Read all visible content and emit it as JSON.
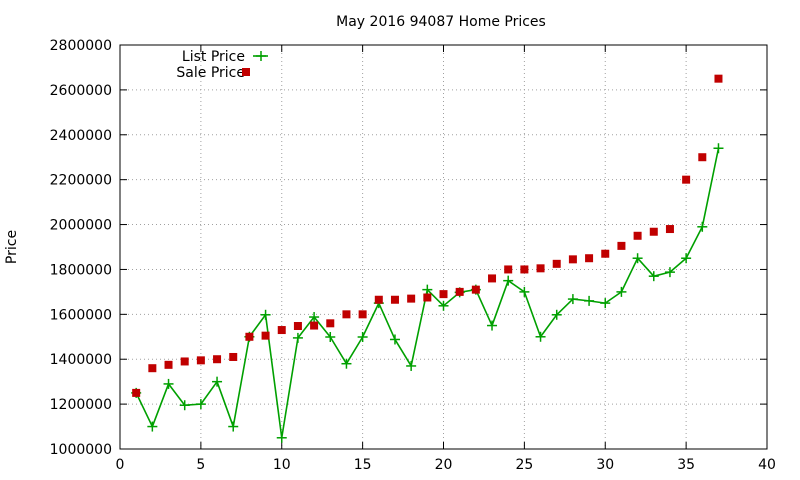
{
  "chart_data": {
    "type": "line",
    "title": "May 2016 94087 Home Prices",
    "xlabel": "",
    "ylabel": "Price",
    "xlim": [
      0,
      40
    ],
    "ylim": [
      1000000,
      2800000
    ],
    "xticks": [
      0,
      5,
      10,
      15,
      20,
      25,
      30,
      35,
      40
    ],
    "yticks": [
      1000000,
      1200000,
      1400000,
      1600000,
      1800000,
      2000000,
      2200000,
      2400000,
      2600000,
      2800000
    ],
    "grid": true,
    "legend_position": "top-left",
    "series": [
      {
        "name": "List Price",
        "style": "line+cross",
        "color": "#00a000",
        "x": [
          1,
          2,
          3,
          4,
          5,
          6,
          7,
          8,
          9,
          10,
          11,
          12,
          13,
          14,
          15,
          16,
          17,
          18,
          19,
          20,
          21,
          22,
          23,
          24,
          25,
          26,
          27,
          28,
          29,
          30,
          31,
          32,
          33,
          34,
          35,
          36,
          37
        ],
        "values": [
          1250000,
          1100000,
          1290000,
          1195000,
          1200000,
          1300000,
          1100000,
          1500000,
          1598000,
          1050000,
          1495000,
          1588000,
          1499000,
          1380000,
          1499000,
          1650000,
          1488000,
          1370000,
          1710000,
          1638000,
          1698000,
          1710000,
          1550000,
          1750000,
          1700000,
          1500000,
          1598000,
          1668000,
          1660000,
          1650000,
          1700000,
          1850000,
          1770000,
          1788000,
          1850000,
          1990000,
          2340000
        ]
      },
      {
        "name": "Sale Price",
        "style": "square-points",
        "color": "#c00000",
        "x": [
          1,
          2,
          3,
          4,
          5,
          6,
          7,
          8,
          9,
          10,
          11,
          12,
          13,
          14,
          15,
          16,
          17,
          18,
          19,
          20,
          21,
          22,
          23,
          24,
          25,
          26,
          27,
          28,
          29,
          30,
          31,
          32,
          33,
          34,
          35,
          36,
          37
        ],
        "values": [
          1250000,
          1360000,
          1375000,
          1390000,
          1395000,
          1400000,
          1410000,
          1500000,
          1505000,
          1530000,
          1548000,
          1550000,
          1560000,
          1600000,
          1600000,
          1665000,
          1665000,
          1670000,
          1675000,
          1690000,
          1700000,
          1710000,
          1760000,
          1800000,
          1800000,
          1805000,
          1825000,
          1845000,
          1850000,
          1870000,
          1905000,
          1950000,
          1968000,
          1980000,
          2200000,
          2300000,
          2650000
        ]
      }
    ]
  }
}
